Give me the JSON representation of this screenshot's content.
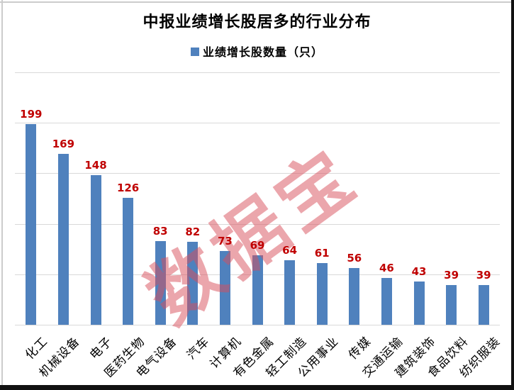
{
  "chart_data": {
    "type": "bar",
    "title": "中报业绩增长股居多的行业分布",
    "legend_label": "业绩增长股数量（只）",
    "legend_position": "top",
    "categories": [
      "化工",
      "机械设备",
      "电子",
      "医药生物",
      "电气设备",
      "汽车",
      "计算机",
      "有色金属",
      "轻工制造",
      "公用事业",
      "传媒",
      "交通运输",
      "建筑装饰",
      "食品饮料",
      "纺织服装"
    ],
    "values": [
      199,
      169,
      148,
      126,
      83,
      82,
      73,
      69,
      64,
      61,
      56,
      46,
      43,
      39,
      39
    ],
    "xlabel": "",
    "ylabel": "",
    "ylim": [
      0,
      250
    ],
    "gridline_step": 50,
    "grid": true,
    "y_axis_labels_visible": false,
    "watermark": "数据宝"
  },
  "colors": {
    "bar": "#4f81bd",
    "value_label": "#c00000",
    "gridline": "#d9d9d9",
    "watermark": "#d94f5c",
    "frame_light": "#cccccc",
    "frame_dark": "#111111"
  }
}
